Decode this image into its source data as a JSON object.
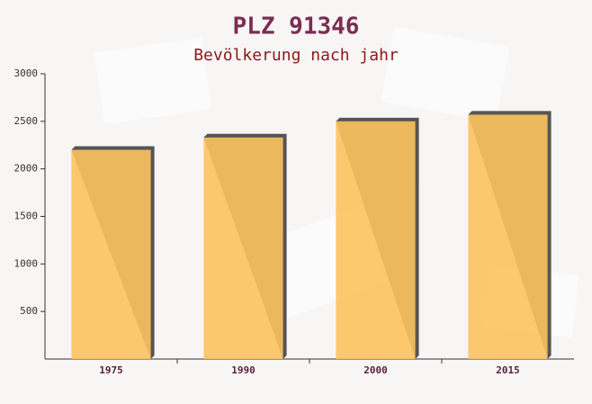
{
  "chart_data": {
    "type": "bar",
    "title": "PLZ 91346",
    "subtitle": "Bevölkerung nach jahr",
    "categories": [
      "1975",
      "1990",
      "2000",
      "2015"
    ],
    "values": [
      2200,
      2330,
      2500,
      2570
    ],
    "color": "#fcc35f",
    "ylim": [
      0,
      3000
    ],
    "yticks": [
      500,
      1000,
      1500,
      2000,
      2500,
      3000
    ],
    "grid": false
  }
}
